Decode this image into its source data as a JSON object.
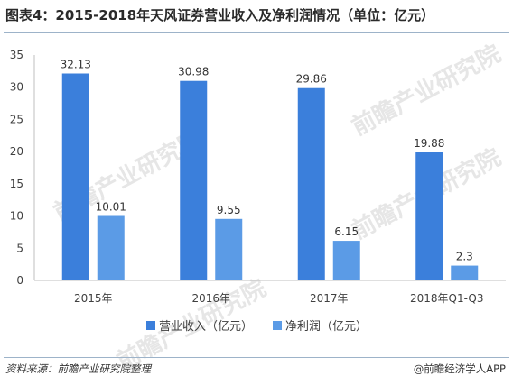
{
  "title": "图表4：2015-2018年天风证券营业收入及净利润情况（单位：亿元）",
  "source": "资料来源：前瞻产业研究院整理",
  "brand": "@前瞻经济学人APP",
  "watermark": "前瞻产业研究院",
  "chart_data": {
    "type": "bar",
    "categories": [
      "2015年",
      "2016年",
      "2017年",
      "2018年Q1-Q3"
    ],
    "series": [
      {
        "name": "营业收入（亿元）",
        "values": [
          32.13,
          30.98,
          29.86,
          19.88
        ],
        "labels": [
          "32.13",
          "30.98",
          "29.86",
          "19.88"
        ],
        "color": "#3b7fdb"
      },
      {
        "name": "净利润（亿元）",
        "values": [
          10.01,
          9.55,
          6.15,
          2.3
        ],
        "labels": [
          "10.01",
          "9.55",
          "6.15",
          "2.3"
        ],
        "color": "#5b9be6"
      }
    ],
    "ylim": [
      0,
      35
    ],
    "yticks": [
      "0",
      "5",
      "10",
      "15",
      "20",
      "25",
      "30",
      "35"
    ],
    "grid": false,
    "legend_position": "bottom"
  }
}
